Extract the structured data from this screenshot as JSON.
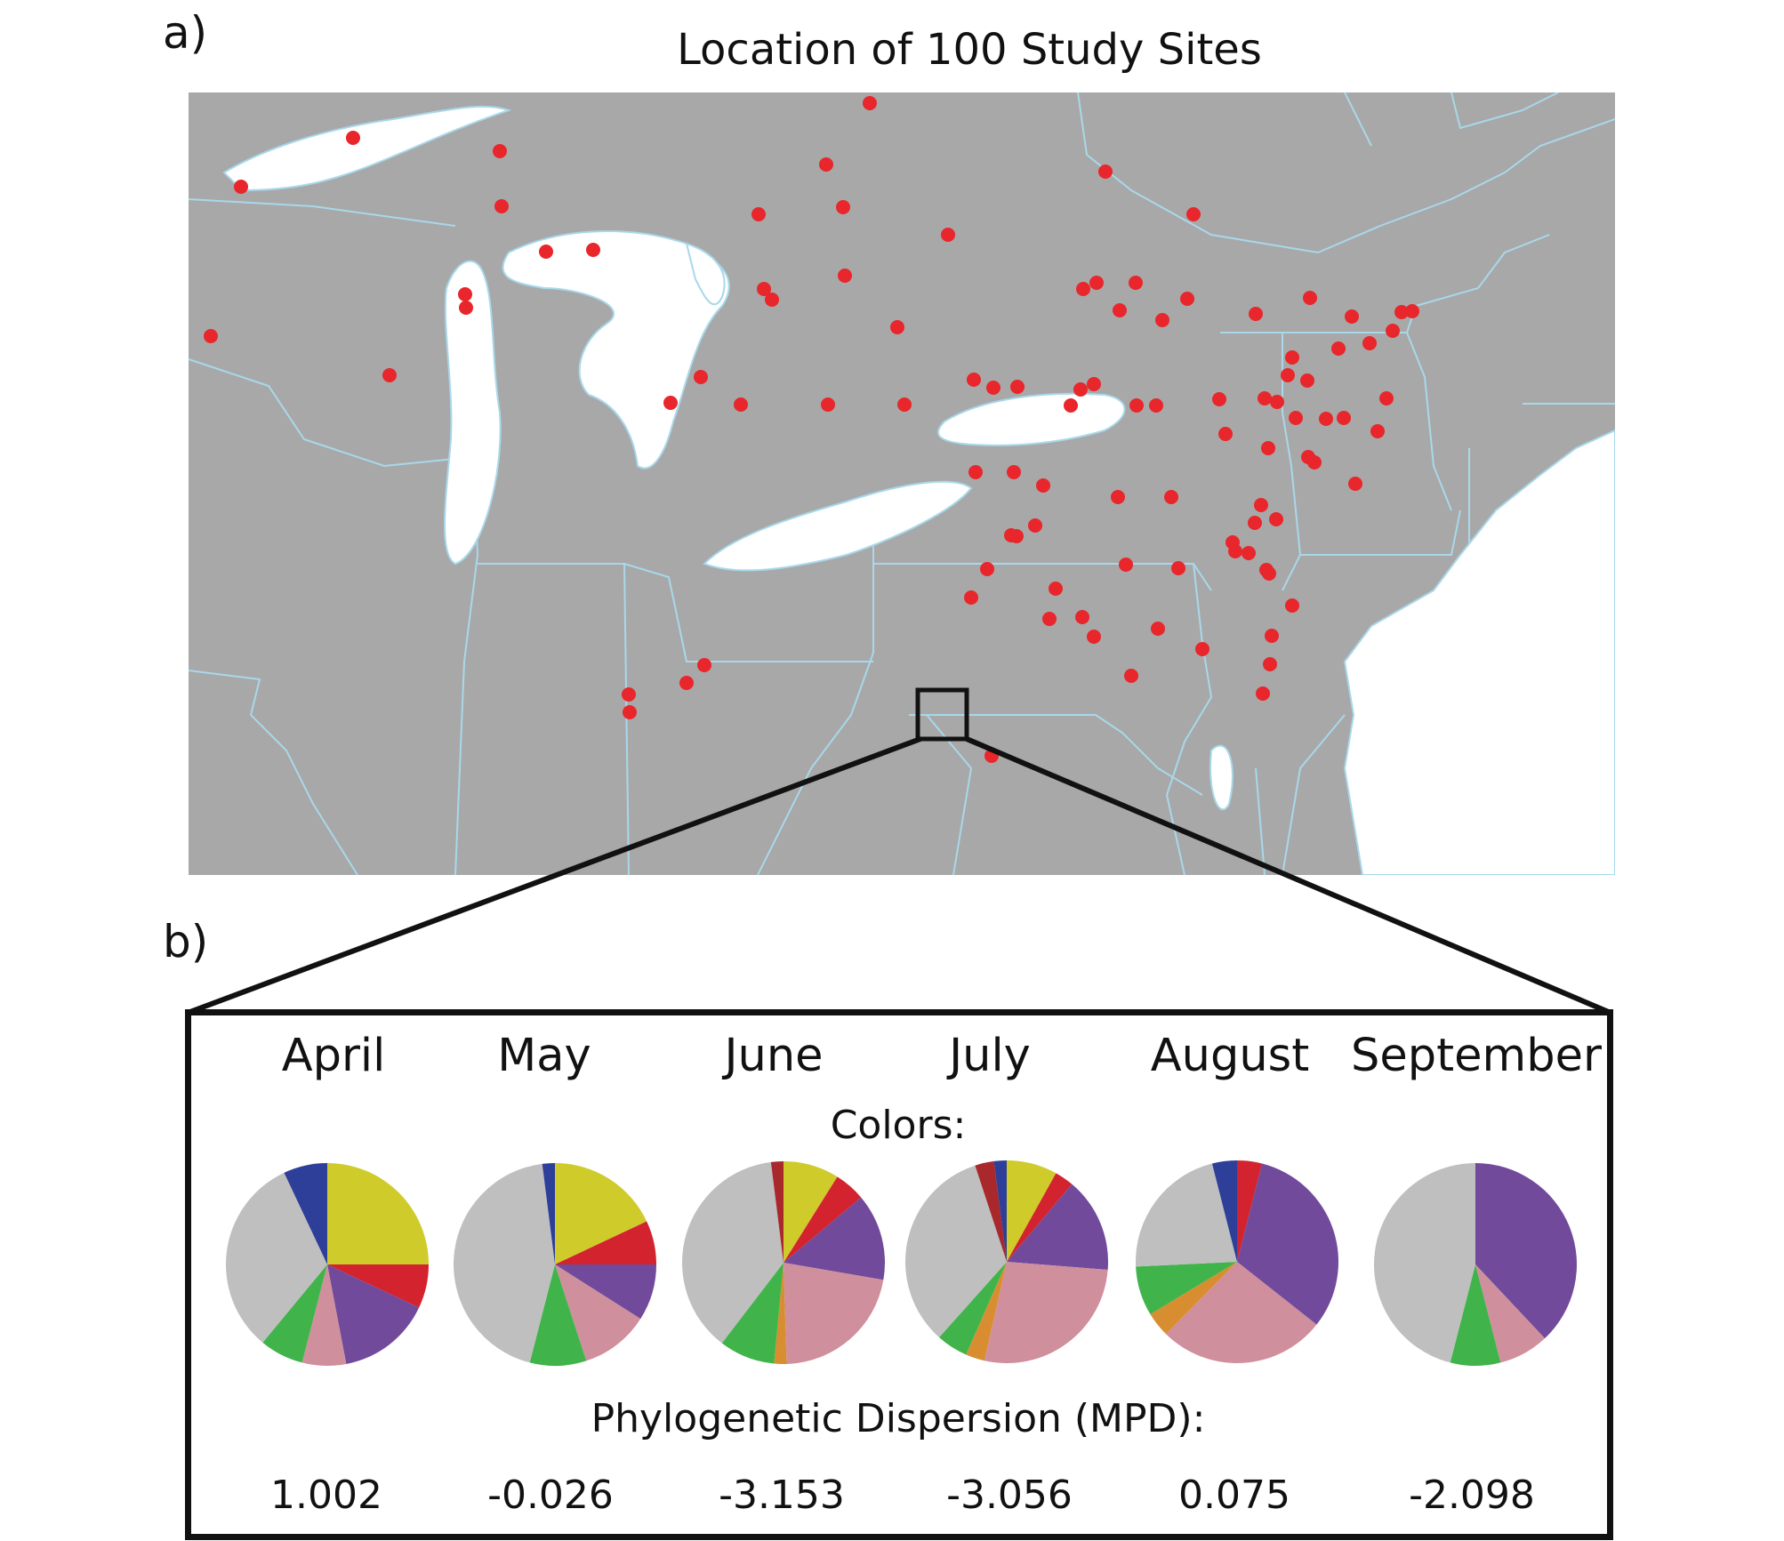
{
  "panel_labels": {
    "a": "a)",
    "b": "b)"
  },
  "map": {
    "title": "Location of 100 Study Sites",
    "colors": {
      "land": "#a8a8a8",
      "water": "#ffffff",
      "borders": "#a8d8ea",
      "site": "#e8262b",
      "callout": "#111111"
    }
  },
  "inset": {
    "colors_label": "Colors:",
    "mpd_label": "Phylogenetic Dispersion (MPD):"
  },
  "chart_data": {
    "type": "pie",
    "title": "Colors:",
    "color_key": {
      "yellow": "#cfcb2b",
      "red": "#d3232e",
      "purple": "#714a9b",
      "pink": "#cf8f9d",
      "orange": "#d88e30",
      "green": "#40b44a",
      "gray": "#bfbfbf",
      "darkred": "#a8282c",
      "blue": "#2d3f98"
    },
    "months": [
      {
        "name": "April",
        "mpd": "1.002",
        "slices": [
          {
            "color": "yellow",
            "value": 25
          },
          {
            "color": "red",
            "value": 7
          },
          {
            "color": "purple",
            "value": 15
          },
          {
            "color": "pink",
            "value": 7
          },
          {
            "color": "green",
            "value": 7
          },
          {
            "color": "gray",
            "value": 32
          },
          {
            "color": "blue",
            "value": 7
          }
        ]
      },
      {
        "name": "May",
        "mpd": "-0.026",
        "slices": [
          {
            "color": "yellow",
            "value": 18
          },
          {
            "color": "red",
            "value": 7
          },
          {
            "color": "purple",
            "value": 9
          },
          {
            "color": "pink",
            "value": 11
          },
          {
            "color": "green",
            "value": 9
          },
          {
            "color": "gray",
            "value": 44
          },
          {
            "color": "blue",
            "value": 2
          }
        ]
      },
      {
        "name": "June",
        "mpd": "-3.153",
        "slices": [
          {
            "color": "yellow",
            "value": 9
          },
          {
            "color": "red",
            "value": 5
          },
          {
            "color": "purple",
            "value": 14
          },
          {
            "color": "pink",
            "value": 22
          },
          {
            "color": "orange",
            "value": 2
          },
          {
            "color": "green",
            "value": 9
          },
          {
            "color": "gray",
            "value": 38
          },
          {
            "color": "darkred",
            "value": 2
          }
        ]
      },
      {
        "name": "July",
        "mpd": "-3.056",
        "slices": [
          {
            "color": "yellow",
            "value": 8
          },
          {
            "color": "red",
            "value": 3
          },
          {
            "color": "purple",
            "value": 15
          },
          {
            "color": "pink",
            "value": 27
          },
          {
            "color": "orange",
            "value": 3
          },
          {
            "color": "green",
            "value": 5
          },
          {
            "color": "gray",
            "value": 33
          },
          {
            "color": "darkred",
            "value": 3
          },
          {
            "color": "blue",
            "value": 2
          }
        ]
      },
      {
        "name": "August",
        "mpd": "0.075",
        "slices": [
          {
            "color": "red",
            "value": 4
          },
          {
            "color": "purple",
            "value": 32
          },
          {
            "color": "pink",
            "value": 27
          },
          {
            "color": "orange",
            "value": 4
          },
          {
            "color": "green",
            "value": 8
          },
          {
            "color": "gray",
            "value": 22
          },
          {
            "color": "blue",
            "value": 4
          }
        ]
      },
      {
        "name": "September",
        "mpd": "-2.098",
        "slices": [
          {
            "color": "purple",
            "value": 38
          },
          {
            "color": "pink",
            "value": 8
          },
          {
            "color": "green",
            "value": 8
          },
          {
            "color": "gray",
            "value": 46
          }
        ]
      }
    ]
  }
}
